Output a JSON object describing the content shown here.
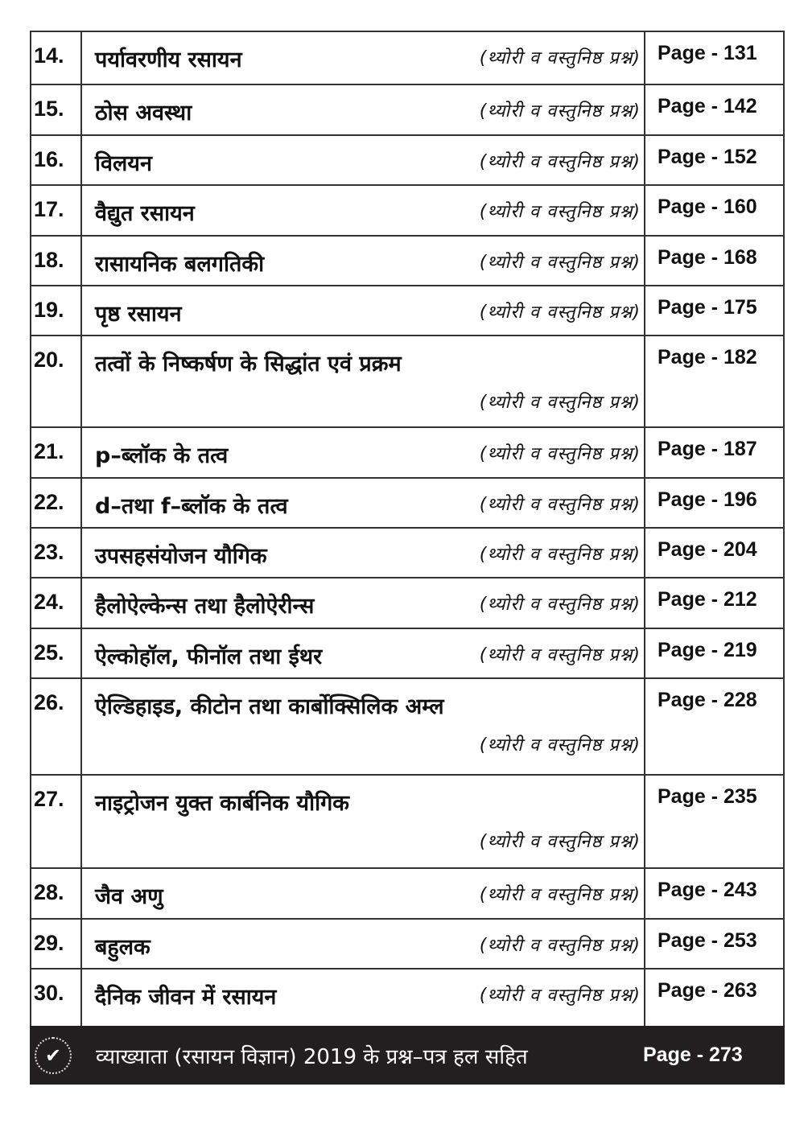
{
  "entries": [
    {
      "num": "14.",
      "title": "पर्यावरणीय रसायन",
      "sub": "(थ्योरी व वस्तुनिष्ठ प्रश्न)",
      "page": "Page - 131"
    },
    {
      "num": "15.",
      "title": "ठोस अवस्था",
      "sub": "(थ्योरी व वस्तुनिष्ठ प्रश्न)",
      "page": "Page - 142"
    },
    {
      "num": "16.",
      "title": "विलयन",
      "sub": "(थ्योरी व वस्तुनिष्ठ प्रश्न)",
      "page": "Page - 152"
    },
    {
      "num": "17.",
      "title": "वैद्युत रसायन",
      "sub": "(थ्योरी व वस्तुनिष्ठ प्रश्न)",
      "page": "Page - 160"
    },
    {
      "num": "18.",
      "title": "रासायनिक बलगतिकी",
      "sub": "(थ्योरी व वस्तुनिष्ठ प्रश्न)",
      "page": "Page - 168"
    },
    {
      "num": "19.",
      "title": "पृष्ठ रसायन",
      "sub": "(थ्योरी व वस्तुनिष्ठ प्रश्न)",
      "page": "Page - 175"
    },
    {
      "num": "20.",
      "title": "तत्वों के निष्कर्षण के सिद्धांत एवं प्रक्रम",
      "sub": "(थ्योरी व वस्तुनिष्ठ प्रश्न)",
      "page": "Page - 182"
    },
    {
      "num": "21.",
      "title": "p–ब्लॉक के तत्व",
      "sub": "(थ्योरी व वस्तुनिष्ठ प्रश्न)",
      "page": "Page - 187"
    },
    {
      "num": "22.",
      "title": "d–तथा f–ब्लॉक के तत्व",
      "sub": "(थ्योरी व वस्तुनिष्ठ प्रश्न)",
      "page": "Page - 196"
    },
    {
      "num": "23.",
      "title": "उपसहसंयोजन यौगिक",
      "sub": "(थ्योरी व वस्तुनिष्ठ प्रश्न)",
      "page": "Page - 204"
    },
    {
      "num": "24.",
      "title": "हैलोऐल्केन्स तथा हैलोऐरीन्स",
      "sub": "(थ्योरी व वस्तुनिष्ठ प्रश्न)",
      "page": "Page - 212"
    },
    {
      "num": "25.",
      "title": "ऐल्कोहॉल, फीनॉल तथा ईथर",
      "sub": "(थ्योरी व वस्तुनिष्ठ प्रश्न)",
      "page": "Page - 219"
    },
    {
      "num": "26.",
      "title": "ऐल्डिहाइड, कीटोन तथा कार्बोक्सिलिक अम्ल",
      "sub": "(थ्योरी व वस्तुनिष्ठ प्रश्न)",
      "page": "Page - 228"
    },
    {
      "num": "27.",
      "title": "नाइट्रोजन युक्त कार्बनिक यौगिक",
      "sub": "(थ्योरी व वस्तुनिष्ठ प्रश्न)",
      "page": "Page - 235"
    },
    {
      "num": "28.",
      "title": "जैव अणु",
      "sub": "(थ्योरी व वस्तुनिष्ठ प्रश्न)",
      "page": "Page - 243"
    },
    {
      "num": "29.",
      "title": "बहुलक",
      "sub": "(थ्योरी व वस्तुनिष्ठ प्रश्न)",
      "page": "Page - 253"
    },
    {
      "num": "30.",
      "title": "दैनिक जीवन में रसायन",
      "sub": "(थ्योरी व वस्तुनिष्ठ प्रश्न)",
      "page": "Page - 263"
    }
  ],
  "footer": {
    "icon": "check-circle-icon",
    "title": "व्याख्याता (रसायन विज्ञान) 2019 के प्रश्न–पत्र हल सहित",
    "page": "Page - 273",
    "background": "#231f20"
  }
}
